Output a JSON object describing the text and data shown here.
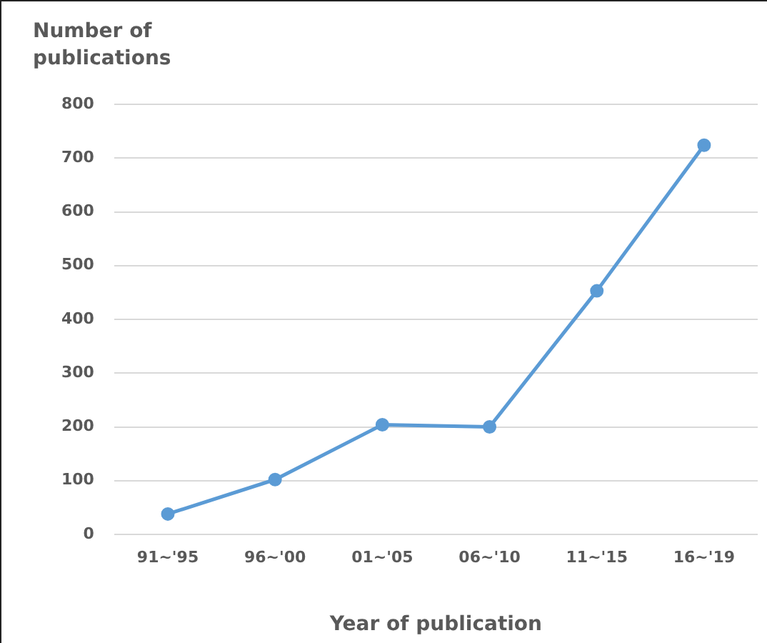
{
  "chart_data": {
    "type": "line",
    "xlabel": "Year of publication",
    "ylabel": "Number of publications",
    "categories": [
      "91~'95",
      "96~'00",
      "01~'05",
      "06~'10",
      "11~'15",
      "16~'19"
    ],
    "series": [
      {
        "color": "#5b9bd5",
        "values": [
          38,
          102,
          204,
          200,
          453,
          724
        ]
      }
    ],
    "ylim": [
      0,
      800
    ],
    "yticks": [
      0,
      100,
      200,
      300,
      400,
      500,
      600,
      700,
      800
    ],
    "grid": "y",
    "marker": "circle",
    "line_style": "solid",
    "legend": false
  }
}
